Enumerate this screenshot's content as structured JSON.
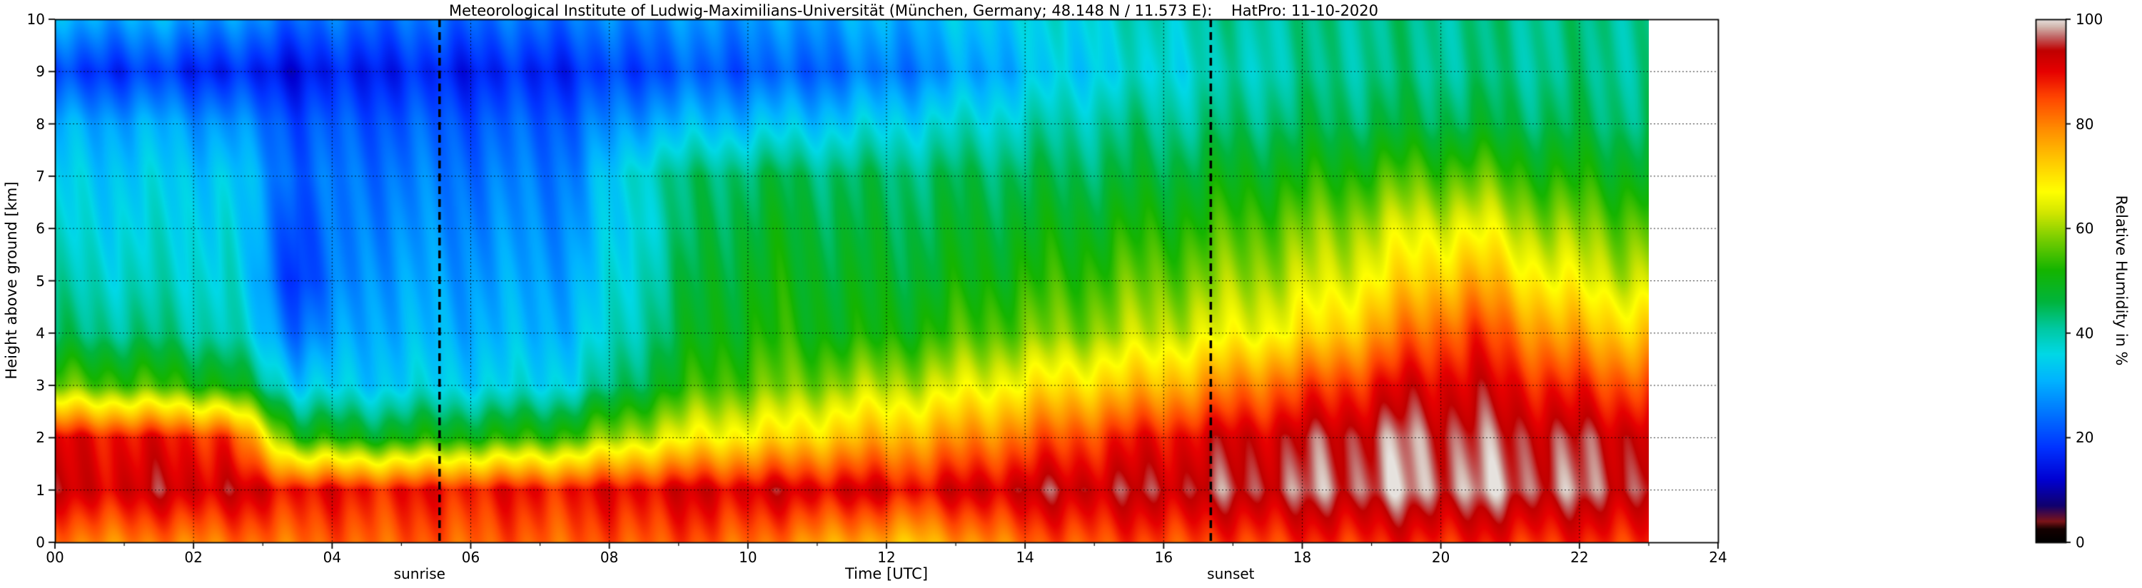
{
  "title": "Meteorological Institute of Ludwig-Maximilians-Universität (München, Germany; 48.148 N / 11.573 E):    HatPro: 11-10-2020",
  "chart_data": {
    "type": "heatmap",
    "xlabel": "Time [UTC]",
    "ylabel": "Height above ground [km]",
    "colorbar_label": "Relative Humidity in %",
    "x_range_hours": [
      0,
      24
    ],
    "data_end_hour": 23,
    "y_range_km": [
      0,
      10
    ],
    "value_range_percent": [
      0,
      100
    ],
    "x_ticks": [
      {
        "label": "00",
        "hour": 0
      },
      {
        "label": "02",
        "hour": 2
      },
      {
        "label": "04",
        "hour": 4
      },
      {
        "label": "06",
        "hour": 6
      },
      {
        "label": "08",
        "hour": 8
      },
      {
        "label": "10",
        "hour": 10
      },
      {
        "label": "12",
        "hour": 12
      },
      {
        "label": "14",
        "hour": 14
      },
      {
        "label": "16",
        "hour": 16
      },
      {
        "label": "18",
        "hour": 18
      },
      {
        "label": "20",
        "hour": 20
      },
      {
        "label": "22",
        "hour": 22
      },
      {
        "label": "24",
        "hour": 24
      }
    ],
    "y_ticks": [
      {
        "label": "0",
        "km": 0
      },
      {
        "label": "1",
        "km": 1
      },
      {
        "label": "2",
        "km": 2
      },
      {
        "label": "3",
        "km": 3
      },
      {
        "label": "4",
        "km": 4
      },
      {
        "label": "5",
        "km": 5
      },
      {
        "label": "6",
        "km": 6
      },
      {
        "label": "7",
        "km": 7
      },
      {
        "label": "8",
        "km": 8
      },
      {
        "label": "9",
        "km": 9
      },
      {
        "label": "10",
        "km": 10
      }
    ],
    "colorbar_ticks": [
      {
        "label": "0",
        "value": 0
      },
      {
        "label": "20",
        "value": 20
      },
      {
        "label": "40",
        "value": 40
      },
      {
        "label": "60",
        "value": 60
      },
      {
        "label": "80",
        "value": 80
      },
      {
        "label": "100",
        "value": 100
      }
    ],
    "grid_on": true,
    "sunrise_hour_utc": 5.55,
    "sunset_hour_utc": 16.68,
    "sunrise_label": "sunrise",
    "sunset_label": "sunset",
    "grid_hours": [
      0.5,
      1.5,
      2.5,
      3.5,
      4.5,
      5.5,
      6.5,
      7.5,
      8.5,
      9.5,
      10.5,
      11.5,
      12.5,
      13.5,
      14.5,
      15.5,
      16.5,
      17.5,
      18.5,
      19.5,
      20.5,
      21.5,
      22.5
    ],
    "grid_heights_km": [
      0,
      1,
      2,
      3,
      4,
      5,
      6,
      7,
      8,
      9,
      10
    ],
    "humidity_grid_percent": [
      [
        80,
        80,
        81,
        82,
        83,
        83,
        83,
        83,
        84,
        84,
        80,
        76,
        74,
        80,
        84,
        85,
        85,
        86,
        87,
        88,
        88,
        87,
        87
      ],
      [
        92,
        93,
        93,
        90,
        89,
        89,
        89,
        89,
        91,
        92,
        92,
        92,
        90,
        93,
        94,
        94,
        95,
        96,
        97,
        98,
        98,
        97,
        96
      ],
      [
        90,
        89,
        87,
        52,
        50,
        51,
        52,
        55,
        63,
        68,
        70,
        74,
        76,
        80,
        84,
        88,
        91,
        93,
        95,
        97,
        96,
        95,
        94
      ],
      [
        56,
        54,
        51,
        34,
        34,
        35,
        35,
        37,
        47,
        55,
        57,
        60,
        62,
        66,
        70,
        73,
        77,
        82,
        86,
        91,
        92,
        88,
        85
      ],
      [
        43,
        42,
        40,
        24,
        31,
        31,
        31,
        32,
        42,
        50,
        52,
        50,
        52,
        56,
        58,
        61,
        64,
        67,
        72,
        81,
        86,
        78,
        73
      ],
      [
        39,
        38,
        38,
        18,
        29,
        29,
        29,
        30,
        40,
        48,
        50,
        48,
        48,
        51,
        53,
        56,
        58,
        61,
        64,
        71,
        76,
        68,
        63
      ],
      [
        36,
        36,
        36,
        20,
        27,
        27,
        27,
        28,
        38,
        46,
        48,
        46,
        46,
        48,
        49,
        51,
        53,
        56,
        59,
        64,
        66,
        60,
        57
      ],
      [
        34,
        34,
        34,
        23,
        25,
        25,
        25,
        26,
        40,
        44,
        45,
        44,
        44,
        45,
        45,
        46,
        48,
        50,
        52,
        55,
        56,
        52,
        50
      ],
      [
        30,
        30,
        28,
        21,
        22,
        22,
        22,
        23,
        30,
        32,
        33,
        34,
        36,
        38,
        40,
        42,
        42,
        44,
        45,
        46,
        46,
        45,
        44
      ],
      [
        18,
        18,
        16,
        14,
        16,
        16,
        16,
        17,
        20,
        22,
        22,
        24,
        26,
        30,
        34,
        36,
        38,
        40,
        42,
        42,
        42,
        42,
        42
      ],
      [
        30,
        30,
        28,
        24,
        24,
        24,
        24,
        25,
        27,
        28,
        28,
        30,
        31,
        34,
        36,
        38,
        40,
        41,
        42,
        42,
        42,
        42,
        42
      ]
    ],
    "colormap_stops": [
      [
        0,
        "#000000"
      ],
      [
        2.5,
        "#140000"
      ],
      [
        4,
        "#7c1418"
      ],
      [
        7,
        "#10006e"
      ],
      [
        12,
        "#0000d2"
      ],
      [
        18,
        "#0032ff"
      ],
      [
        25,
        "#0078ff"
      ],
      [
        31,
        "#00b4ff"
      ],
      [
        36,
        "#00d8e6"
      ],
      [
        41,
        "#00c8a0"
      ],
      [
        46,
        "#00b43c"
      ],
      [
        52,
        "#14b400"
      ],
      [
        58,
        "#78cd00"
      ],
      [
        63,
        "#d2e600"
      ],
      [
        67,
        "#ffff00"
      ],
      [
        73,
        "#ffc800"
      ],
      [
        79,
        "#ff8c00"
      ],
      [
        85,
        "#ff4600"
      ],
      [
        90,
        "#e60000"
      ],
      [
        94,
        "#c00000"
      ],
      [
        96.5,
        "#c06060"
      ],
      [
        98.5,
        "#d2b4ac"
      ],
      [
        100,
        "#e6e2de"
      ]
    ]
  }
}
